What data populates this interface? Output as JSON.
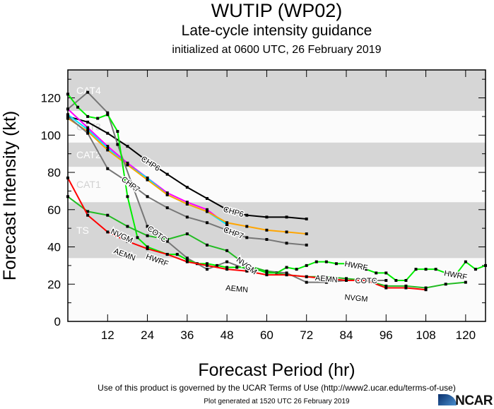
{
  "header": {
    "title": "WUTIP (WP02)",
    "subtitle": "Late-cycle intensity guidance",
    "initialized": "initialized at 0600 UTC, 26 February 2019"
  },
  "footer": {
    "terms": "Use of this product is governed by the UCAR Terms of Use (http://www2.ucar.edu/terms-of-use)",
    "generated": "Plot generated at 1520 UTC   26 February 2019",
    "logo": "NCAR"
  },
  "chart_data": {
    "type": "line",
    "xlabel": "Forecast Period (hr)",
    "ylabel": "Forecast Intensity (kt)",
    "xlim": [
      0,
      126
    ],
    "ylim": [
      0,
      135
    ],
    "xticks": [
      12,
      24,
      36,
      48,
      60,
      72,
      84,
      96,
      108,
      120
    ],
    "yticks": [
      0,
      20,
      40,
      60,
      80,
      100,
      120
    ],
    "bands": [
      {
        "label": "TS",
        "range": [
          34,
          64
        ],
        "shaded": true
      },
      {
        "label": "CAT1",
        "range": [
          64,
          83
        ],
        "shaded": false
      },
      {
        "label": "CAT2",
        "range": [
          83,
          96
        ],
        "shaded": true
      },
      {
        "label": "CAT3",
        "range": [
          96,
          113
        ],
        "shaded": false
      },
      {
        "label": "CAT4",
        "range": [
          113,
          137
        ],
        "shaded": true
      }
    ],
    "series": [
      {
        "name": "CHP6",
        "color": "#000000",
        "x": [
          0,
          6,
          12,
          18,
          24,
          30,
          36,
          42,
          48,
          54,
          60,
          66,
          72
        ],
        "y": [
          110,
          107,
          101,
          94,
          86,
          79,
          72,
          66,
          60,
          57,
          56,
          56,
          55
        ],
        "labels": [
          25,
          50
        ]
      },
      {
        "name": "",
        "color": "#ff00ff",
        "x": [
          0,
          6,
          12,
          18,
          24,
          30,
          36,
          42,
          48
        ],
        "y": [
          114,
          104,
          94,
          85,
          77,
          69,
          64,
          60,
          52
        ],
        "labels": []
      },
      {
        "name": "",
        "color": "#00e5ff",
        "x": [
          0,
          6,
          12,
          18,
          24,
          30,
          36,
          42,
          48
        ],
        "y": [
          111,
          103,
          93,
          84,
          77,
          68,
          63,
          59,
          52
        ],
        "labels": []
      },
      {
        "name": "",
        "color": "#ffa500",
        "x": [
          0,
          6,
          12,
          18,
          24,
          30,
          36,
          42,
          48,
          54,
          60,
          66,
          72
        ],
        "y": [
          109,
          102,
          92,
          84,
          76,
          68,
          63,
          59,
          53,
          51,
          49,
          48,
          47
        ],
        "labels": []
      },
      {
        "name": "CHP7",
        "color": "#777777",
        "x": [
          0,
          6,
          12,
          18,
          24,
          30,
          36,
          42,
          48,
          54,
          60,
          66,
          72
        ],
        "y": [
          110,
          101,
          82,
          75,
          67,
          61,
          56,
          53,
          49,
          45,
          44,
          42,
          41
        ],
        "labels": [
          19,
          50
        ]
      },
      {
        "name": "COTC",
        "color": "#777777",
        "x": [
          0,
          6,
          12,
          15,
          24,
          30,
          36,
          42,
          48,
          54,
          60,
          66,
          72,
          78,
          84,
          90,
          96
        ],
        "y": [
          114,
          123,
          112,
          95,
          51,
          43,
          34,
          28,
          32,
          28,
          27,
          26,
          21,
          21,
          22,
          22,
          22
        ],
        "labels": [
          27,
          90
        ]
      },
      {
        "name": "HWRF",
        "color": "#00ee00",
        "x": [
          0,
          3,
          6,
          9,
          12,
          15,
          18,
          21,
          24,
          30,
          33,
          36,
          39,
          42,
          45,
          48,
          51,
          54,
          57,
          60,
          63,
          66,
          69,
          72,
          75,
          78,
          81,
          84,
          87,
          90,
          93,
          96,
          99,
          102,
          105,
          108,
          111,
          114,
          117,
          120,
          123,
          126
        ],
        "y": [
          122,
          115,
          110,
          109,
          111,
          102,
          67,
          45,
          40,
          36,
          36,
          33,
          31,
          31,
          30,
          29,
          29,
          29,
          28,
          26,
          26,
          29,
          28,
          30,
          32,
          32,
          31,
          31,
          30,
          28,
          26,
          26,
          22,
          22,
          28,
          28,
          28,
          26,
          25,
          32,
          28,
          30
        ],
        "labels": [
          27,
          87,
          117
        ]
      },
      {
        "name": "NVGM",
        "color": "#22bb22",
        "x": [
          0,
          6,
          12,
          18,
          24,
          30,
          36,
          42,
          48,
          54,
          60,
          66,
          72,
          78,
          84,
          90,
          96,
          102,
          108,
          114,
          120
        ],
        "y": [
          67,
          59,
          57,
          51,
          46,
          44,
          47,
          41,
          38,
          30,
          27,
          25,
          24,
          24,
          23,
          22,
          19,
          19,
          18,
          20,
          21
        ],
        "labels": [
          24,
          54,
          87
        ]
      },
      {
        "name": "AEMN",
        "color": "#ff0000",
        "x": [
          0,
          6,
          12,
          18,
          24,
          30,
          36,
          42,
          48,
          54,
          60,
          66,
          72,
          78,
          84,
          90,
          96,
          102,
          108
        ],
        "y": [
          77,
          57,
          48,
          43,
          39,
          36,
          32,
          30,
          28,
          27,
          25,
          25,
          24,
          23,
          22,
          22,
          18,
          18,
          17
        ],
        "labels": [
          21,
          51,
          78
        ]
      }
    ]
  }
}
